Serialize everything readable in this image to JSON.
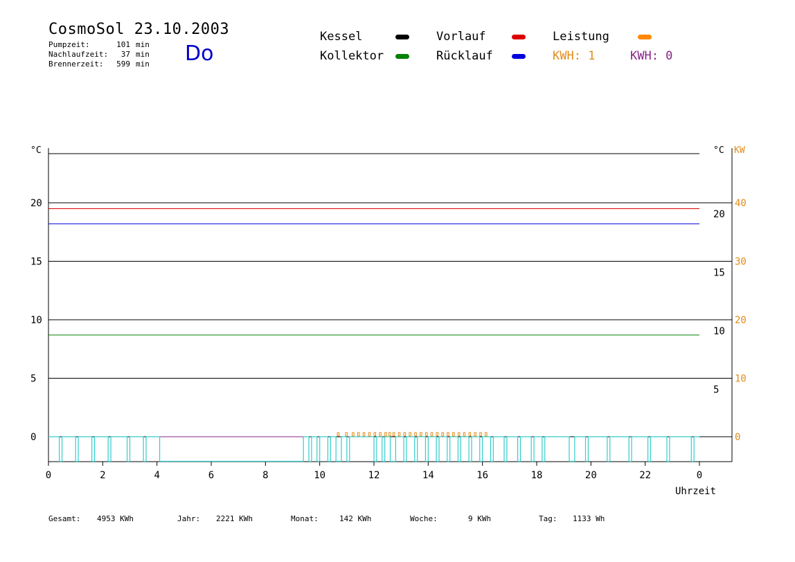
{
  "header": {
    "title": "CosmoSol 23.10.2003",
    "day": "Do",
    "stats": [
      {
        "label": "Pumpzeit:",
        "value": "101",
        "unit": "min"
      },
      {
        "label": "Nachlaufzeit:",
        "value": "37",
        "unit": "min"
      },
      {
        "label": "Brennerzeit:",
        "value": "599",
        "unit": "min"
      }
    ]
  },
  "legend": {
    "kessel": {
      "label": "Kessel",
      "color": "#000000"
    },
    "kollektor": {
      "label": "Kollektor",
      "color": "#008000"
    },
    "vorlauf": {
      "label": "Vorlauf",
      "color": "#dd0000"
    },
    "ruecklauf": {
      "label": "Rücklauf",
      "color": "#0000dd"
    },
    "leistung": {
      "label": "Leistung",
      "color": "#ff8800"
    },
    "kwh1": {
      "label": "KWH: 1",
      "color": "#e08c1a"
    },
    "kwh0": {
      "label": "KWH: 0",
      "color": "#882288"
    }
  },
  "footer": [
    {
      "label": "Gesamt:",
      "value": "4953 KWh"
    },
    {
      "label": "Jahr:",
      "value": "2221 KWh"
    },
    {
      "label": "Monat:",
      "value": "142 KWh"
    },
    {
      "label": "Woche:",
      "value": "9 KWh"
    },
    {
      "label": "Tag:",
      "value": "1133 Wh"
    }
  ],
  "chart_data": {
    "type": "line",
    "xlabel": "Uhrzeit",
    "ylabel_left": "°C",
    "ylabel_right": "°C",
    "ylabel_power": "KW",
    "x_ticks": [
      "0",
      "2",
      "4",
      "6",
      "8",
      "10",
      "12",
      "14",
      "16",
      "18",
      "20",
      "22",
      "0"
    ],
    "xlim": [
      0,
      24
    ],
    "ylim": [
      -2,
      27
    ],
    "y_ticks_left": [
      "0",
      "5",
      "10",
      "15",
      "20"
    ],
    "y_ticks_right": [
      "5",
      "10",
      "15",
      "20"
    ],
    "y_ticks_power": [
      "0",
      "10",
      "20",
      "30",
      "40"
    ],
    "grid": true,
    "series": [
      {
        "name": "Kessel",
        "color": "#000000",
        "x": [
          0,
          24
        ],
        "y": [
          24.2,
          24.2
        ]
      },
      {
        "name": "Vorlauf",
        "color": "#dd0000",
        "x": [
          0,
          24
        ],
        "y": [
          19.5,
          19.5
        ]
      },
      {
        "name": "Rücklauf",
        "color": "#0000dd",
        "x": [
          0,
          24
        ],
        "y": [
          18.2,
          18.2
        ]
      },
      {
        "name": "Kollektor",
        "color": "#008000",
        "x": [
          0,
          24
        ],
        "y": [
          8.7,
          8.7
        ]
      },
      {
        "name": "KWH: 0",
        "color": "#882288",
        "x": [
          4.1,
          9.4
        ],
        "y": [
          0,
          0
        ]
      }
    ],
    "pump_color": "#33cccc",
    "pump_low_segments": [
      [
        0.4,
        0.5
      ],
      [
        1.0,
        1.1
      ],
      [
        1.6,
        1.7
      ],
      [
        2.2,
        2.3
      ],
      [
        2.9,
        3.0
      ],
      [
        3.5,
        3.6
      ],
      [
        4.1,
        9.4
      ],
      [
        9.6,
        9.7
      ],
      [
        9.9,
        10.0
      ],
      [
        10.3,
        10.4
      ],
      [
        10.6,
        10.8
      ],
      [
        11.0,
        11.1
      ],
      [
        12.0,
        12.1
      ],
      [
        12.3,
        12.4
      ],
      [
        12.6,
        12.8
      ],
      [
        13.1,
        13.2
      ],
      [
        13.5,
        13.6
      ],
      [
        13.9,
        14.0
      ],
      [
        14.3,
        14.4
      ],
      [
        14.7,
        14.8
      ],
      [
        15.1,
        15.2
      ],
      [
        15.5,
        15.6
      ],
      [
        15.9,
        16.0
      ],
      [
        16.3,
        16.4
      ],
      [
        16.8,
        16.9
      ],
      [
        17.3,
        17.4
      ],
      [
        17.8,
        17.9
      ],
      [
        18.2,
        18.3
      ],
      [
        19.2,
        19.4
      ],
      [
        19.8,
        19.9
      ],
      [
        20.6,
        20.7
      ],
      [
        21.4,
        21.5
      ],
      [
        22.1,
        22.2
      ],
      [
        22.8,
        22.9
      ],
      [
        23.7,
        23.8
      ]
    ],
    "power_pulses_x": [
      10.65,
      10.95,
      11.2,
      11.4,
      11.6,
      11.8,
      12.0,
      12.2,
      12.4,
      12.55,
      12.7,
      12.9,
      13.1,
      13.3,
      13.5,
      13.7,
      13.9,
      14.1,
      14.3,
      14.5,
      14.7,
      14.9,
      15.1,
      15.3,
      15.5,
      15.7,
      15.9,
      16.1
    ]
  }
}
